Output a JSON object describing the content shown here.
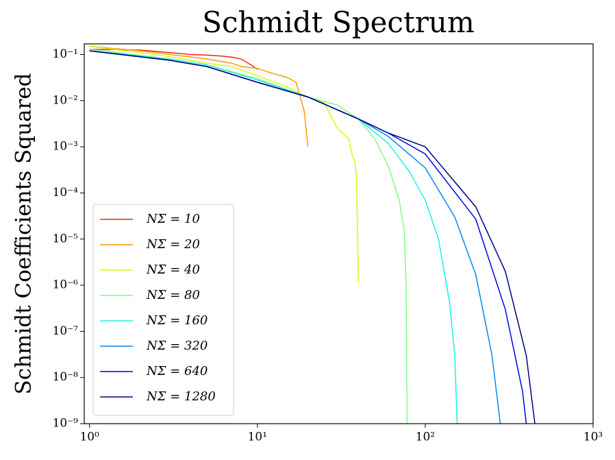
{
  "chart_data": {
    "type": "line",
    "title": "Schmidt Spectrum",
    "y_label": "Schmidt Coefficients Squared",
    "xscale": "log",
    "yscale": "log",
    "legend": "lower left",
    "xlim": [
      0.93,
      1000
    ],
    "ylim": [
      1e-09,
      0.17
    ],
    "xticks": [
      {
        "value": 1,
        "label": "10⁰"
      },
      {
        "value": 10,
        "label": "10¹"
      },
      {
        "value": 100,
        "label": "10²"
      },
      {
        "value": 1000,
        "label": "10³"
      }
    ],
    "yticks": [
      {
        "value": 1e-09,
        "label": "10⁻⁹"
      },
      {
        "value": 1e-08,
        "label": "10⁻⁸"
      },
      {
        "value": 1e-07,
        "label": "10⁻⁷"
      },
      {
        "value": 1e-06,
        "label": "10⁻⁶"
      },
      {
        "value": 1e-05,
        "label": "10⁻⁵"
      },
      {
        "value": 0.0001,
        "label": "10⁻⁴"
      },
      {
        "value": 0.001,
        "label": "10⁻³"
      },
      {
        "value": 0.01,
        "label": "10⁻²"
      },
      {
        "value": 0.1,
        "label": "10⁻¹"
      }
    ],
    "series": [
      {
        "name": "NΣ = 10",
        "color": "#e8290c",
        "x": [
          1,
          2,
          3,
          4,
          5,
          6,
          7,
          8,
          9,
          10
        ],
        "values": [
          0.13,
          0.125,
          0.11,
          0.1,
          0.097,
          0.093,
          0.088,
          0.08,
          0.062,
          0.048
        ]
      },
      {
        "name": "NΣ = 20",
        "color": "#ff9800",
        "x": [
          1,
          2,
          3,
          5,
          7,
          8,
          10,
          12,
          15,
          17,
          18,
          19,
          20
        ],
        "values": [
          0.15,
          0.12,
          0.1,
          0.08,
          0.065,
          0.055,
          0.05,
          0.04,
          0.032,
          0.025,
          0.012,
          0.006,
          0.001
        ]
      },
      {
        "name": "NΣ = 40",
        "color": "#dcf515",
        "x": [
          1,
          2,
          3,
          5,
          7,
          10,
          15,
          20,
          25,
          28,
          30,
          35,
          37,
          38,
          39,
          40
        ],
        "values": [
          0.15,
          0.11,
          0.09,
          0.065,
          0.055,
          0.035,
          0.02,
          0.012,
          0.009,
          0.004,
          0.0025,
          0.0015,
          0.0006,
          0.0005,
          0.0002,
          1.2e-06
        ]
      },
      {
        "name": "NΣ = 80",
        "color": "#7dff7a",
        "x": [
          1,
          3,
          5,
          10,
          20,
          30,
          40,
          50,
          60,
          70,
          75,
          77,
          78
        ],
        "values": [
          0.13,
          0.08,
          0.06,
          0.03,
          0.012,
          0.008,
          0.004,
          0.0015,
          0.0004,
          7e-05,
          1.5e-05,
          1e-06,
          1e-09
        ]
      },
      {
        "name": "NΣ = 160",
        "color": "#16f2e6",
        "x": [
          1,
          3,
          5,
          10,
          20,
          40,
          60,
          80,
          100,
          120,
          140,
          150,
          155
        ],
        "values": [
          0.12,
          0.08,
          0.06,
          0.028,
          0.012,
          0.004,
          0.0012,
          0.0003,
          7e-05,
          1e-05,
          4e-07,
          3e-08,
          1e-09
        ]
      },
      {
        "name": "NΣ = 320",
        "color": "#0088ee",
        "x": [
          1,
          3,
          5,
          10,
          20,
          40,
          60,
          100,
          150,
          200,
          250,
          280
        ],
        "values": [
          0.12,
          0.075,
          0.055,
          0.025,
          0.012,
          0.004,
          0.0017,
          0.00035,
          3e-05,
          1.7e-06,
          3e-08,
          1e-09
        ]
      },
      {
        "name": "NΣ = 640",
        "color": "#0000ee",
        "x": [
          1,
          3,
          5,
          10,
          20,
          40,
          60,
          100,
          200,
          300,
          380,
          400
        ],
        "values": [
          0.12,
          0.075,
          0.055,
          0.025,
          0.012,
          0.004,
          0.002,
          0.0007,
          2.7e-05,
          3e-07,
          5e-09,
          1e-09
        ]
      },
      {
        "name": "NΣ = 1280",
        "color": "#000080",
        "x": [
          1,
          3,
          5,
          10,
          20,
          40,
          60,
          100,
          200,
          300,
          400,
          450
        ],
        "values": [
          0.12,
          0.075,
          0.055,
          0.025,
          0.012,
          0.004,
          0.002,
          0.001,
          5e-05,
          2e-06,
          3e-08,
          1e-09
        ]
      }
    ]
  }
}
